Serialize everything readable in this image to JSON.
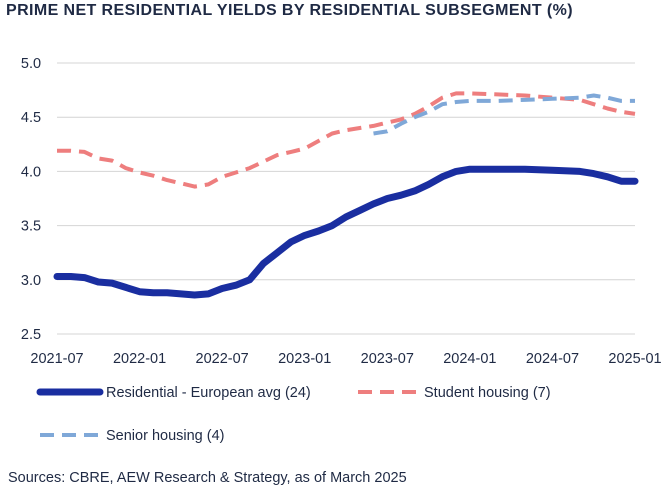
{
  "title": "PRIME NET RESIDENTIAL YIELDS BY RESIDENTIAL SUBSEGMENT (%)",
  "source": "Sources: CBRE, AEW Research & Strategy, as of March 2025",
  "chart_data": {
    "type": "line",
    "title": "PRIME NET RESIDENTIAL YIELDS BY RESIDENTIAL SUBSEGMENT (%)",
    "xlabel": "",
    "ylabel": "",
    "x_ticks": [
      "2021-07",
      "2022-01",
      "2022-07",
      "2023-01",
      "2023-07",
      "2024-01",
      "2024-07",
      "2025-01"
    ],
    "y_ticks": [
      "2.5",
      "3.0",
      "3.5",
      "4.0",
      "4.5",
      "5.0"
    ],
    "xlim": [
      "2021-07",
      "2025-01"
    ],
    "ylim": [
      2.5,
      5.0
    ],
    "grid": "horizontal",
    "legend": "bottom",
    "series": [
      {
        "name": "Residential - European avg (24)",
        "color": "#1a2ea0",
        "style": "solid",
        "points": [
          [
            "2021-07",
            3.03
          ],
          [
            "2021-08",
            3.03
          ],
          [
            "2021-09",
            3.02
          ],
          [
            "2021-10",
            2.98
          ],
          [
            "2021-11",
            2.97
          ],
          [
            "2021-12",
            2.93
          ],
          [
            "2022-01",
            2.89
          ],
          [
            "2022-02",
            2.88
          ],
          [
            "2022-03",
            2.88
          ],
          [
            "2022-04",
            2.87
          ],
          [
            "2022-05",
            2.86
          ],
          [
            "2022-06",
            2.87
          ],
          [
            "2022-07",
            2.92
          ],
          [
            "2022-08",
            2.95
          ],
          [
            "2022-09",
            3.0
          ],
          [
            "2022-10",
            3.15
          ],
          [
            "2022-11",
            3.25
          ],
          [
            "2022-12",
            3.35
          ],
          [
            "2023-01",
            3.41
          ],
          [
            "2023-02",
            3.45
          ],
          [
            "2023-03",
            3.5
          ],
          [
            "2023-04",
            3.58
          ],
          [
            "2023-05",
            3.64
          ],
          [
            "2023-06",
            3.7
          ],
          [
            "2023-07",
            3.75
          ],
          [
            "2023-08",
            3.78
          ],
          [
            "2023-09",
            3.82
          ],
          [
            "2023-10",
            3.88
          ],
          [
            "2023-11",
            3.95
          ],
          [
            "2023-12",
            4.0
          ],
          [
            "2024-01",
            4.02
          ],
          [
            "2024-03",
            4.02
          ],
          [
            "2024-05",
            4.02
          ],
          [
            "2024-07",
            4.01
          ],
          [
            "2024-09",
            4.0
          ],
          [
            "2024-10",
            3.98
          ],
          [
            "2024-11",
            3.95
          ],
          [
            "2024-12",
            3.91
          ],
          [
            "2025-01",
            3.91
          ]
        ]
      },
      {
        "name": "Student housing (7)",
        "color": "#ee7e7e",
        "style": "dashed",
        "points": [
          [
            "2021-07",
            4.19
          ],
          [
            "2021-08",
            4.19
          ],
          [
            "2021-09",
            4.18
          ],
          [
            "2021-10",
            4.12
          ],
          [
            "2021-11",
            4.1
          ],
          [
            "2021-12",
            4.03
          ],
          [
            "2022-01",
            3.99
          ],
          [
            "2022-02",
            3.96
          ],
          [
            "2022-03",
            3.92
          ],
          [
            "2022-04",
            3.89
          ],
          [
            "2022-05",
            3.86
          ],
          [
            "2022-06",
            3.88
          ],
          [
            "2022-07",
            3.95
          ],
          [
            "2022-08",
            3.99
          ],
          [
            "2022-09",
            4.03
          ],
          [
            "2022-10",
            4.09
          ],
          [
            "2022-11",
            4.15
          ],
          [
            "2022-12",
            4.18
          ],
          [
            "2023-01",
            4.21
          ],
          [
            "2023-02",
            4.28
          ],
          [
            "2023-03",
            4.35
          ],
          [
            "2023-04",
            4.38
          ],
          [
            "2023-05",
            4.4
          ],
          [
            "2023-06",
            4.42
          ],
          [
            "2023-07",
            4.45
          ],
          [
            "2023-08",
            4.48
          ],
          [
            "2023-09",
            4.53
          ],
          [
            "2023-10",
            4.6
          ],
          [
            "2023-11",
            4.68
          ],
          [
            "2023-12",
            4.72
          ],
          [
            "2024-01",
            4.72
          ],
          [
            "2024-03",
            4.71
          ],
          [
            "2024-05",
            4.7
          ],
          [
            "2024-07",
            4.68
          ],
          [
            "2024-09",
            4.66
          ],
          [
            "2024-10",
            4.62
          ],
          [
            "2024-11",
            4.58
          ],
          [
            "2024-12",
            4.55
          ],
          [
            "2025-01",
            4.53
          ]
        ]
      },
      {
        "name": "Senior housing (4)",
        "color": "#7fa8d8",
        "style": "dashed",
        "points": [
          [
            "2023-06",
            4.35
          ],
          [
            "2023-07",
            4.37
          ],
          [
            "2023-08",
            4.44
          ],
          [
            "2023-09",
            4.5
          ],
          [
            "2023-10",
            4.55
          ],
          [
            "2023-11",
            4.62
          ],
          [
            "2023-12",
            4.64
          ],
          [
            "2024-01",
            4.65
          ],
          [
            "2024-03",
            4.65
          ],
          [
            "2024-05",
            4.66
          ],
          [
            "2024-07",
            4.67
          ],
          [
            "2024-09",
            4.68
          ],
          [
            "2024-10",
            4.7
          ],
          [
            "2024-11",
            4.68
          ],
          [
            "2024-12",
            4.65
          ],
          [
            "2025-01",
            4.65
          ]
        ]
      }
    ]
  }
}
